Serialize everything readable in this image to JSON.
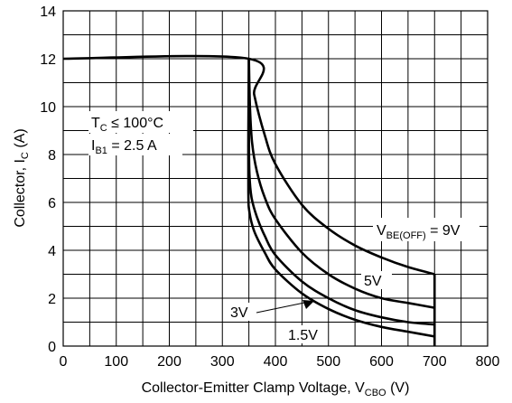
{
  "chart_data": {
    "type": "line",
    "xlabel": {
      "main": "Collector-Emitter Clamp Voltage, V",
      "sub": "CBO",
      "suffix": " (V)"
    },
    "ylabel": {
      "main": "Collector, I",
      "sub": "C",
      "suffix": " (A)"
    },
    "xlim": [
      0,
      800
    ],
    "ylim": [
      0,
      14
    ],
    "x_ticks": [
      "0",
      "100",
      "200",
      "300",
      "400",
      "500",
      "600",
      "700",
      "800"
    ],
    "y_ticks": [
      "0",
      "2",
      "4",
      "6",
      "8",
      "10",
      "12",
      "14"
    ],
    "grid": true,
    "annotations": {
      "tc_main": "T",
      "tc_sub": "C",
      "tc_rest": " ≤ 100°C",
      "ib_main": "I",
      "ib_sub": "B1",
      "ib_rest": " = 2.5 A"
    },
    "series": [
      {
        "name": "9V",
        "label_main": "V",
        "label_sub": "BE(OFF)",
        "label_rest": " = 9V",
        "points": [
          [
            0,
            12
          ],
          [
            350,
            12
          ],
          [
            360,
            10.5
          ],
          [
            380,
            8.8
          ],
          [
            400,
            7.6
          ],
          [
            450,
            5.9
          ],
          [
            500,
            4.9
          ],
          [
            550,
            4.2
          ],
          [
            600,
            3.7
          ],
          [
            650,
            3.3
          ],
          [
            700,
            3.0
          ]
        ]
      },
      {
        "name": "5V",
        "label_main": "5V",
        "points": [
          [
            350,
            12
          ],
          [
            352,
            10
          ],
          [
            356,
            8.5
          ],
          [
            365,
            7.3
          ],
          [
            380,
            6.2
          ],
          [
            400,
            5.3
          ],
          [
            450,
            3.9
          ],
          [
            500,
            3.0
          ],
          [
            550,
            2.4
          ],
          [
            600,
            2.0
          ],
          [
            650,
            1.8
          ],
          [
            700,
            1.6
          ]
        ]
      },
      {
        "name": "3V",
        "label_main": "3V",
        "points": [
          [
            350,
            12
          ],
          [
            350,
            9
          ],
          [
            351,
            7.2
          ],
          [
            355,
            6.2
          ],
          [
            365,
            5.4
          ],
          [
            380,
            4.6
          ],
          [
            400,
            3.8
          ],
          [
            450,
            2.7
          ],
          [
            500,
            2.0
          ],
          [
            550,
            1.5
          ],
          [
            600,
            1.2
          ],
          [
            650,
            1.0
          ],
          [
            700,
            0.9
          ]
        ]
      },
      {
        "name": "1.5V",
        "label_main": "1.5V",
        "points": [
          [
            350,
            12
          ],
          [
            349,
            9
          ],
          [
            349,
            6.4
          ],
          [
            351,
            5.6
          ],
          [
            360,
            4.8
          ],
          [
            380,
            3.9
          ],
          [
            400,
            3.2
          ],
          [
            450,
            2.2
          ],
          [
            500,
            1.55
          ],
          [
            550,
            1.1
          ],
          [
            600,
            0.8
          ],
          [
            650,
            0.6
          ],
          [
            700,
            0.4
          ]
        ]
      }
    ]
  }
}
